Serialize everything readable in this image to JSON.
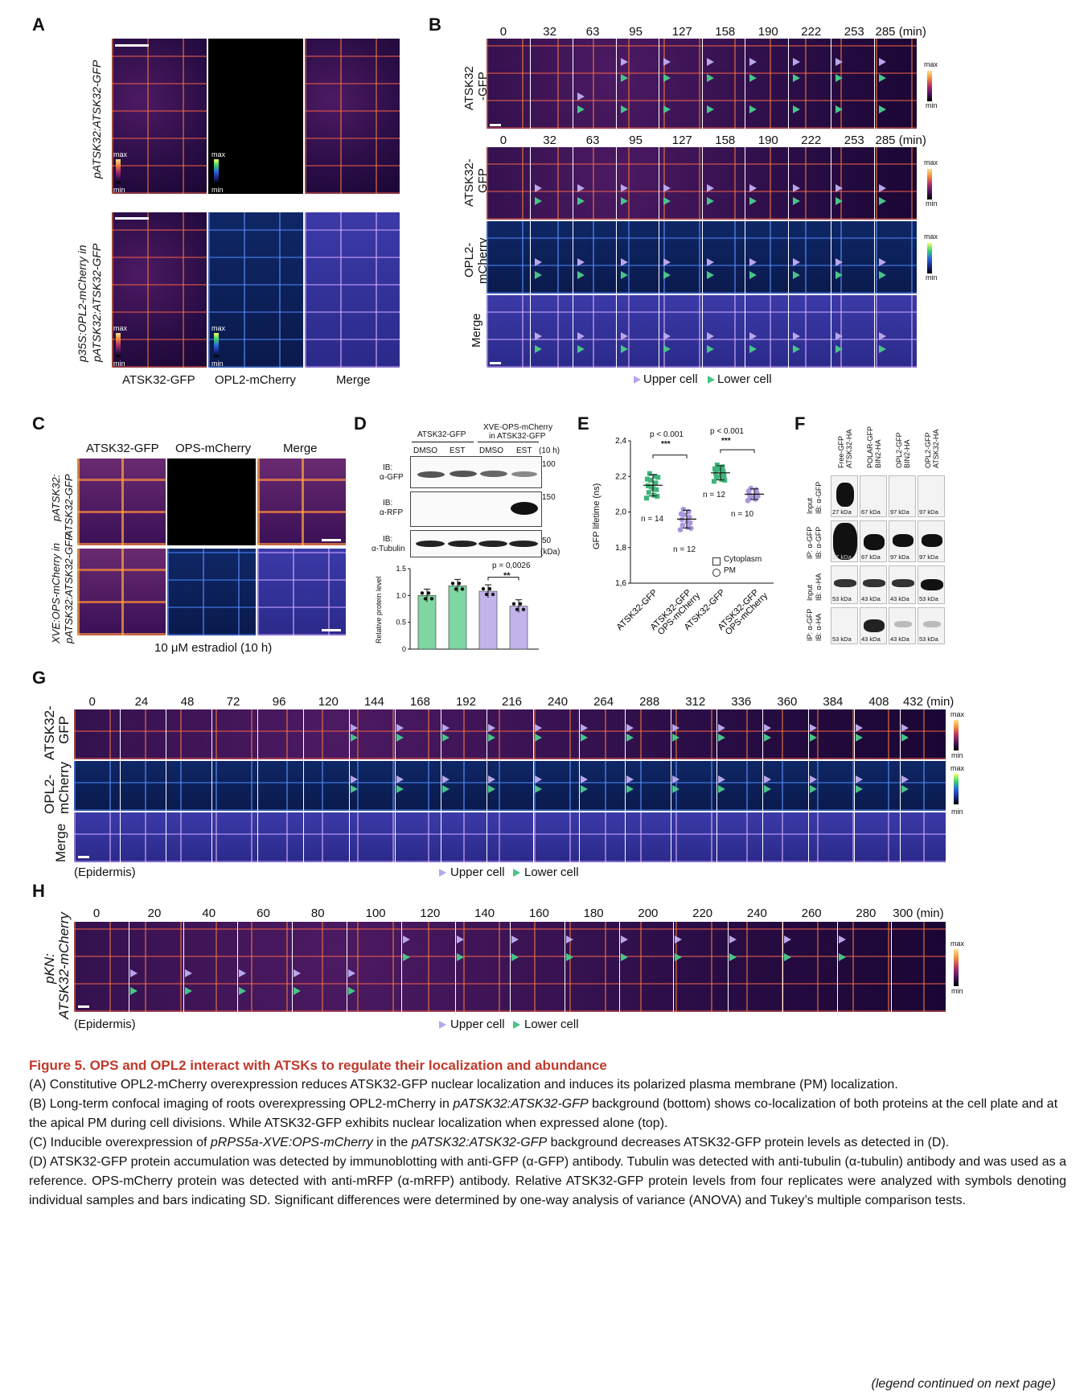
{
  "panels": {
    "A": {
      "label": "A",
      "row1_label": "pATSK32:ATSK32-GFP",
      "row2_label_1": "p35S:OPL2-mCherry in",
      "row2_label_2": "pATSK32:ATSK32-GFP",
      "columns": [
        "ATSK32-GFP",
        "OPL2-mCherry",
        "Merge"
      ],
      "cbar_max": "max",
      "cbar_min": "min"
    },
    "B": {
      "label": "B",
      "times": [
        "0",
        "32",
        "63",
        "95",
        "127",
        "158",
        "190",
        "222",
        "253",
        "285 (min)"
      ],
      "row1": "ATSK32\n-GFP",
      "row1_a": "ATSK32",
      "row1_b": "-GFP",
      "row2_a": "ATSK32-",
      "row2_b": "GFP",
      "row3_a": "OPL2-",
      "row3_b": "mCherry",
      "row4": "Merge",
      "cbar_max": "max",
      "cbar_min": "min",
      "legend_upper": "Upper cell",
      "legend_lower": "Lower cell"
    },
    "C": {
      "label": "C",
      "columns": [
        "ATSK32-GFP",
        "OPS-mCherry",
        "Merge"
      ],
      "row1_a": "pATSK32:",
      "row1_b": "ATSK32-GFP",
      "row2_a": "XVE:OPS-mCherry in",
      "row2_b": "pATSK32:ATSK32-GFP",
      "footer": "10 μM estradiol (10 h)"
    },
    "D": {
      "label": "D",
      "group1": "ATSK32-GFP",
      "group2_a": "XVE-OPS-mCherry",
      "group2_b": "in ATSK32-GFP",
      "lanes": [
        "DMSO",
        "EST",
        "DMSO",
        "EST"
      ],
      "time": "(10 h)",
      "blots": [
        {
          "ib": "IB:",
          "ab": "α-GFP",
          "marker": "100"
        },
        {
          "ib": "IB:",
          "ab": "α-RFP",
          "marker": "150"
        },
        {
          "ib": "IB:",
          "ab": "α-Tubulin",
          "marker": "50"
        }
      ],
      "kda": "(kDa)",
      "pval": "p = 0,0026",
      "stars": "**",
      "ylabel": "Relative protein level",
      "yticks": [
        "1.5",
        "1.0",
        "0.5",
        "0"
      ]
    },
    "E": {
      "label": "E",
      "ylabel": "GFP lifetime (ns)",
      "yticks": [
        "2,4",
        "2,2",
        "2,0",
        "1,8",
        "1,6"
      ],
      "p1": "p < 0.001",
      "p2": "p < 0.001",
      "stars1": "***",
      "stars2": "***",
      "n": [
        "n = 14",
        "n = 12",
        "n = 12",
        "n = 10"
      ],
      "legend": [
        "Cytoplasm",
        "PM"
      ],
      "xlabels": [
        "ATSK32-GFP",
        "ATSK32-GFP\nOPS-mCherry",
        "ATSK32-GFP",
        "ATSK32-GFP\nOPS-mCherry"
      ]
    },
    "F": {
      "label": "F",
      "columns": [
        "Free-GFP\nATSK32-HA",
        "POLAR-GFP\nBIN2-HA",
        "OPL2-GFP\nBIN2-HA",
        "OPL2-GFP\nATSK32-HA"
      ],
      "rows": [
        {
          "a": "Input",
          "b": "IB: α-GFP"
        },
        {
          "a": "IP: α-GFP",
          "b": "IB: α-GFP"
        },
        {
          "a": "Input",
          "b": "IB: α-HA"
        },
        {
          "a": "IP: α-GFP",
          "b": "IB: α-HA"
        }
      ],
      "row_kda": [
        [
          "27 kDa",
          "67 kDa",
          "97 kDa",
          "97 kDa"
        ],
        [
          "27 kDa",
          "67 kDa",
          "97 kDa",
          "97 kDa"
        ],
        [
          "53 kDa",
          "43 kDa",
          "43 kDa",
          "53 kDa"
        ],
        [
          "53 kDa",
          "43 kDa",
          "43 kDa",
          "53 kDa"
        ]
      ]
    },
    "G": {
      "label": "G",
      "times": [
        "0",
        "24",
        "48",
        "72",
        "96",
        "120",
        "144",
        "168",
        "192",
        "216",
        "240",
        "264",
        "288",
        "312",
        "336",
        "360",
        "384",
        "408",
        "432 (min)"
      ],
      "row1_a": "ATSK32-",
      "row1_b": "GFP",
      "row2_a": "OPL2-",
      "row2_b": "mCherry",
      "row3": "Merge",
      "footer": "(Epidermis)",
      "legend_upper": "Upper cell",
      "legend_lower": "Lower cell"
    },
    "H": {
      "label": "H",
      "times": [
        "0",
        "20",
        "40",
        "60",
        "80",
        "100",
        "120",
        "140",
        "160",
        "180",
        "200",
        "220",
        "240",
        "260",
        "280",
        "300 (min)"
      ],
      "row_a": "pKN:",
      "row_b": "ATSK32-mCherry",
      "footer": "(Epidermis)",
      "legend_upper": "Upper cell",
      "legend_lower": "Lower cell"
    }
  },
  "caption": {
    "title": "Figure 5. OPS and OPL2 interact with ATSKs to regulate their localization and abundance",
    "A": "(A) Constitutive OPL2-mCherry overexpression reduces ATSK32-GFP nuclear localization and induces its polarized plasma membrane (PM) localization.",
    "B_1": "(B) Long-term confocal imaging of roots overexpressing OPL2-mCherry in ",
    "B_it": "pATSK32:ATSK32-GFP",
    "B_2": " background (bottom) shows co-localization of both proteins at the cell plate and at the apical PM during cell divisions. While ATSK32-GFP exhibits nuclear localization when expressed alone (top).",
    "C_1": "(C) Inducible overexpression of ",
    "C_it1": "pRPS5a-XVE:OPS-mCherry",
    "C_2": " in the ",
    "C_it2": "pATSK32:ATSK32-GFP",
    "C_3": " background decreases ATSK32-GFP protein levels as detected in (D).",
    "D": "(D) ATSK32-GFP protein accumulation was detected by immunoblotting with anti-GFP (α-GFP) antibody. Tubulin was detected with anti-tubulin (α-tubulin) antibody and was used as a reference. OPS-mCherry protein was detected with anti-mRFP (α-mRFP) antibody. Relative ATSK32-GFP protein levels from four replicates were analyzed with symbols denoting individual samples and bars indicating SD. Significant differences were determined by one-way analysis of variance (ANOVA) and Tukey’s multiple comparison tests.",
    "continued": "(legend continued on next page)"
  },
  "chart_data": [
    {
      "type": "bar",
      "panel": "D",
      "categories": [
        "DMSO",
        "EST",
        "DMSO",
        "EST"
      ],
      "values": [
        1.0,
        1.18,
        1.08,
        0.8
      ],
      "colors": [
        "#7fd6a2",
        "#7fd6a2",
        "#c3b3ea",
        "#c3b3ea"
      ],
      "ylabel": "Relative protein level",
      "ylim": [
        0,
        1.5
      ]
    },
    {
      "type": "scatter",
      "panel": "E",
      "categories": [
        "ATSK32-GFP",
        "ATSK32-GFP OPS-mCherry",
        "ATSK32-GFP",
        "ATSK32-GFP OPS-mCherry"
      ],
      "means": [
        2.15,
        1.96,
        2.22,
        2.1
      ],
      "sd": [
        0.06,
        0.05,
        0.04,
        0.03
      ],
      "n": [
        14,
        12,
        12,
        10
      ],
      "ylabel": "GFP lifetime (ns)",
      "ylim": [
        1.6,
        2.4
      ]
    }
  ]
}
